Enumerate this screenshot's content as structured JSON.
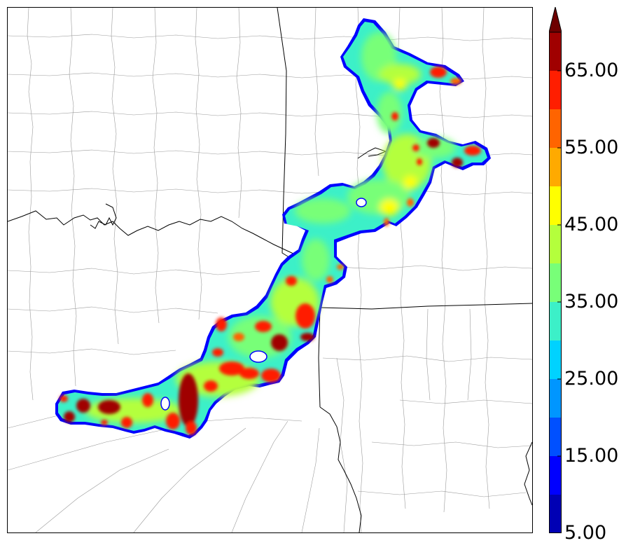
{
  "map": {
    "field": "reflectivity swath"
  },
  "colorbar": {
    "levels": [
      5,
      10,
      15,
      20,
      25,
      30,
      35,
      40,
      45,
      50,
      55,
      60,
      65,
      70
    ],
    "colors": [
      "#0000b4",
      "#0000ff",
      "#0050ff",
      "#0096ff",
      "#00d2ff",
      "#3cf0c8",
      "#78ff78",
      "#b4ff3c",
      "#ffff00",
      "#ffaa00",
      "#ff6400",
      "#ff1e00",
      "#a00000"
    ],
    "extend": "max",
    "extend_color": "#6e0000",
    "labels": [
      "65.00",
      "55.00",
      "45.00",
      "35.00",
      "25.00",
      "15.00",
      "5.00"
    ],
    "label_values": [
      65,
      55,
      45,
      35,
      25,
      15,
      5
    ]
  }
}
